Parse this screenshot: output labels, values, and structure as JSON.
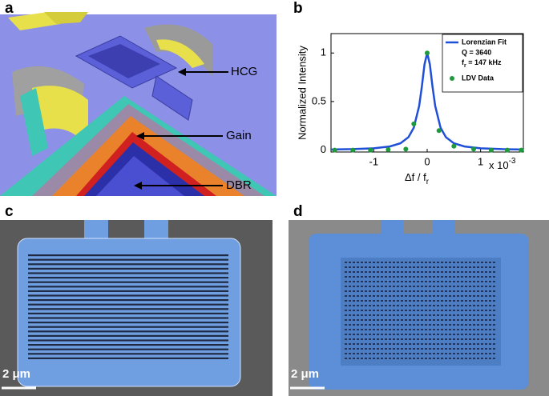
{
  "panels": {
    "a": {
      "label": "a",
      "annotations": [
        "HCG",
        "Gain",
        "DBR"
      ]
    },
    "b": {
      "label": "b"
    },
    "c": {
      "label": "c",
      "scale_bar": "2 μm"
    },
    "d": {
      "label": "d",
      "scale_bar": "2 μm"
    }
  },
  "chart_data": {
    "type": "line",
    "ylabel": "Normalized Intensity",
    "xlabel": {
      "main": "Δf / f",
      "sub": "r"
    },
    "x_multiplier": {
      "base": "x 10",
      "exp": "-3"
    },
    "legend_notes": {
      "q": "Q = 3640",
      "fr_symbol": "f",
      "fr_sub": "r",
      "fr_rest": " = 147 kHz"
    },
    "legend": "upper right",
    "xlim": [
      -1.8,
      1.8
    ],
    "xticks": [
      -1,
      0,
      1
    ],
    "ylim": [
      -0.02,
      1.2
    ],
    "yticks": [
      0,
      0.5,
      1
    ],
    "series": [
      {
        "name": "Lorenzian Fit",
        "color": "#1f4fd6",
        "style": "line",
        "x": [
          -1.8,
          -1.4,
          -1,
          -0.7,
          -0.5,
          -0.35,
          -0.25,
          -0.15,
          -0.1,
          -0.05,
          0,
          0.05,
          0.1,
          0.15,
          0.25,
          0.35,
          0.5,
          0.7,
          1,
          1.4,
          1.8
        ],
        "values": [
          0.0058,
          0.0095,
          0.0184,
          0.037,
          0.07,
          0.133,
          0.231,
          0.455,
          0.652,
          0.883,
          1,
          0.883,
          0.652,
          0.455,
          0.231,
          0.133,
          0.07,
          0.037,
          0.0184,
          0.0095,
          0.0058
        ]
      },
      {
        "name": "LDV Data",
        "color": "#1e9a3c",
        "style": "scatter",
        "x": [
          -1.73,
          -1.39,
          -1.06,
          -0.73,
          -0.4,
          -0.25,
          0,
          0.22,
          0.5,
          0.87,
          1.2,
          1.5,
          1.76
        ],
        "values": [
          0,
          0,
          0,
          0.005,
          0.01,
          0.27,
          1,
          0.2,
          0.04,
          0.01,
          0,
          0,
          0
        ]
      }
    ]
  }
}
